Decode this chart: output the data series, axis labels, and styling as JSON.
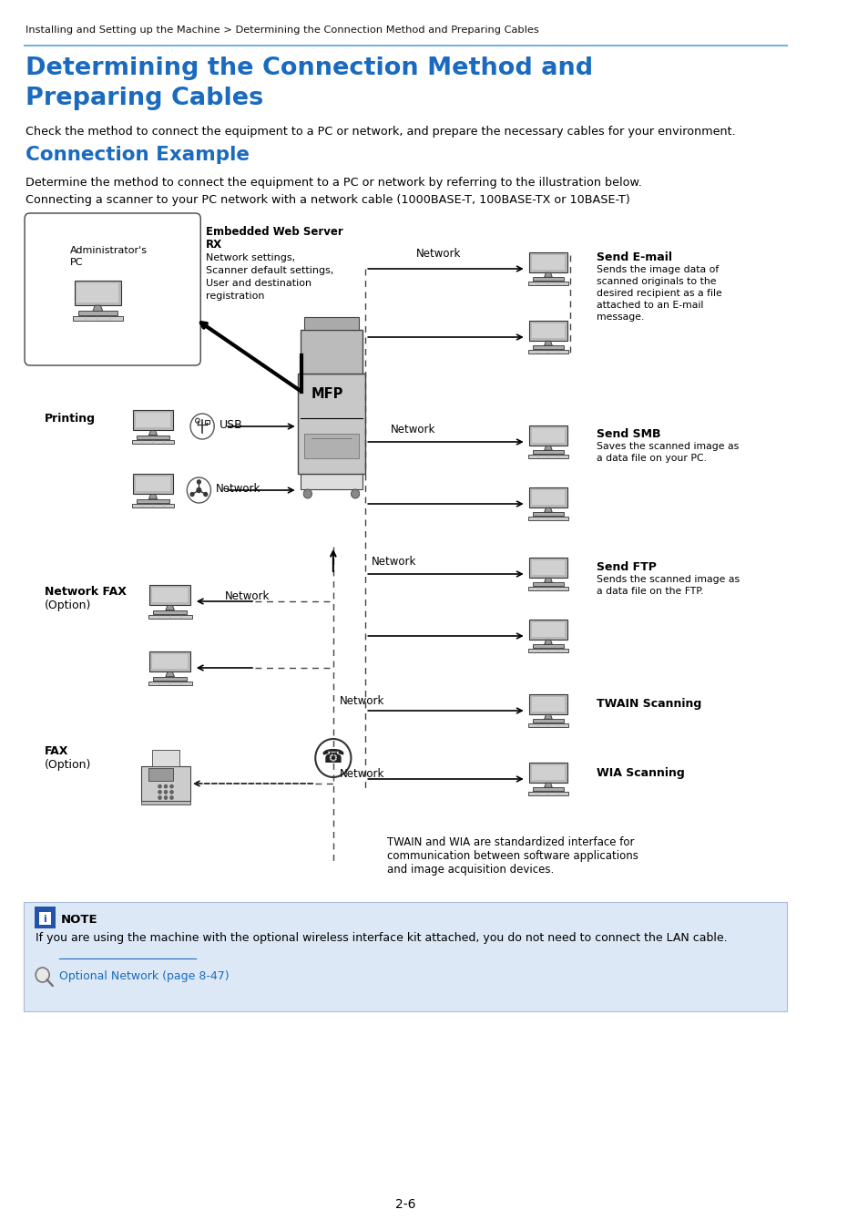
{
  "breadcrumb": "Installing and Setting up the Machine > Determining the Connection Method and Preparing Cables",
  "title_line1": "Determining the Connection Method and",
  "title_line2": "Preparing Cables",
  "title_color": "#1a6bbf",
  "section_title": "Connection Example",
  "section_title_color": "#1a6bbf",
  "body_text1": "Check the method to connect the equipment to a PC or network, and prepare the necessary cables for your environment.",
  "body_text2": "Determine the method to connect the equipment to a PC or network by referring to the illustration below.",
  "body_text3": "Connecting a scanner to your PC network with a network cable (1000BASE-T, 100BASE-TX or 10BASE-T)",
  "note_bg": "#dce8f5",
  "note_title": "NOTE",
  "note_text": "If you are using the machine with the optional wireless interface kit attached, you do not need to connect the LAN cable.",
  "note_link": "Optional Network (page 8-47)",
  "page_number": "2-6",
  "bg_color": "#ffffff",
  "text_color": "#000000",
  "line_color": "#7ab0d8"
}
